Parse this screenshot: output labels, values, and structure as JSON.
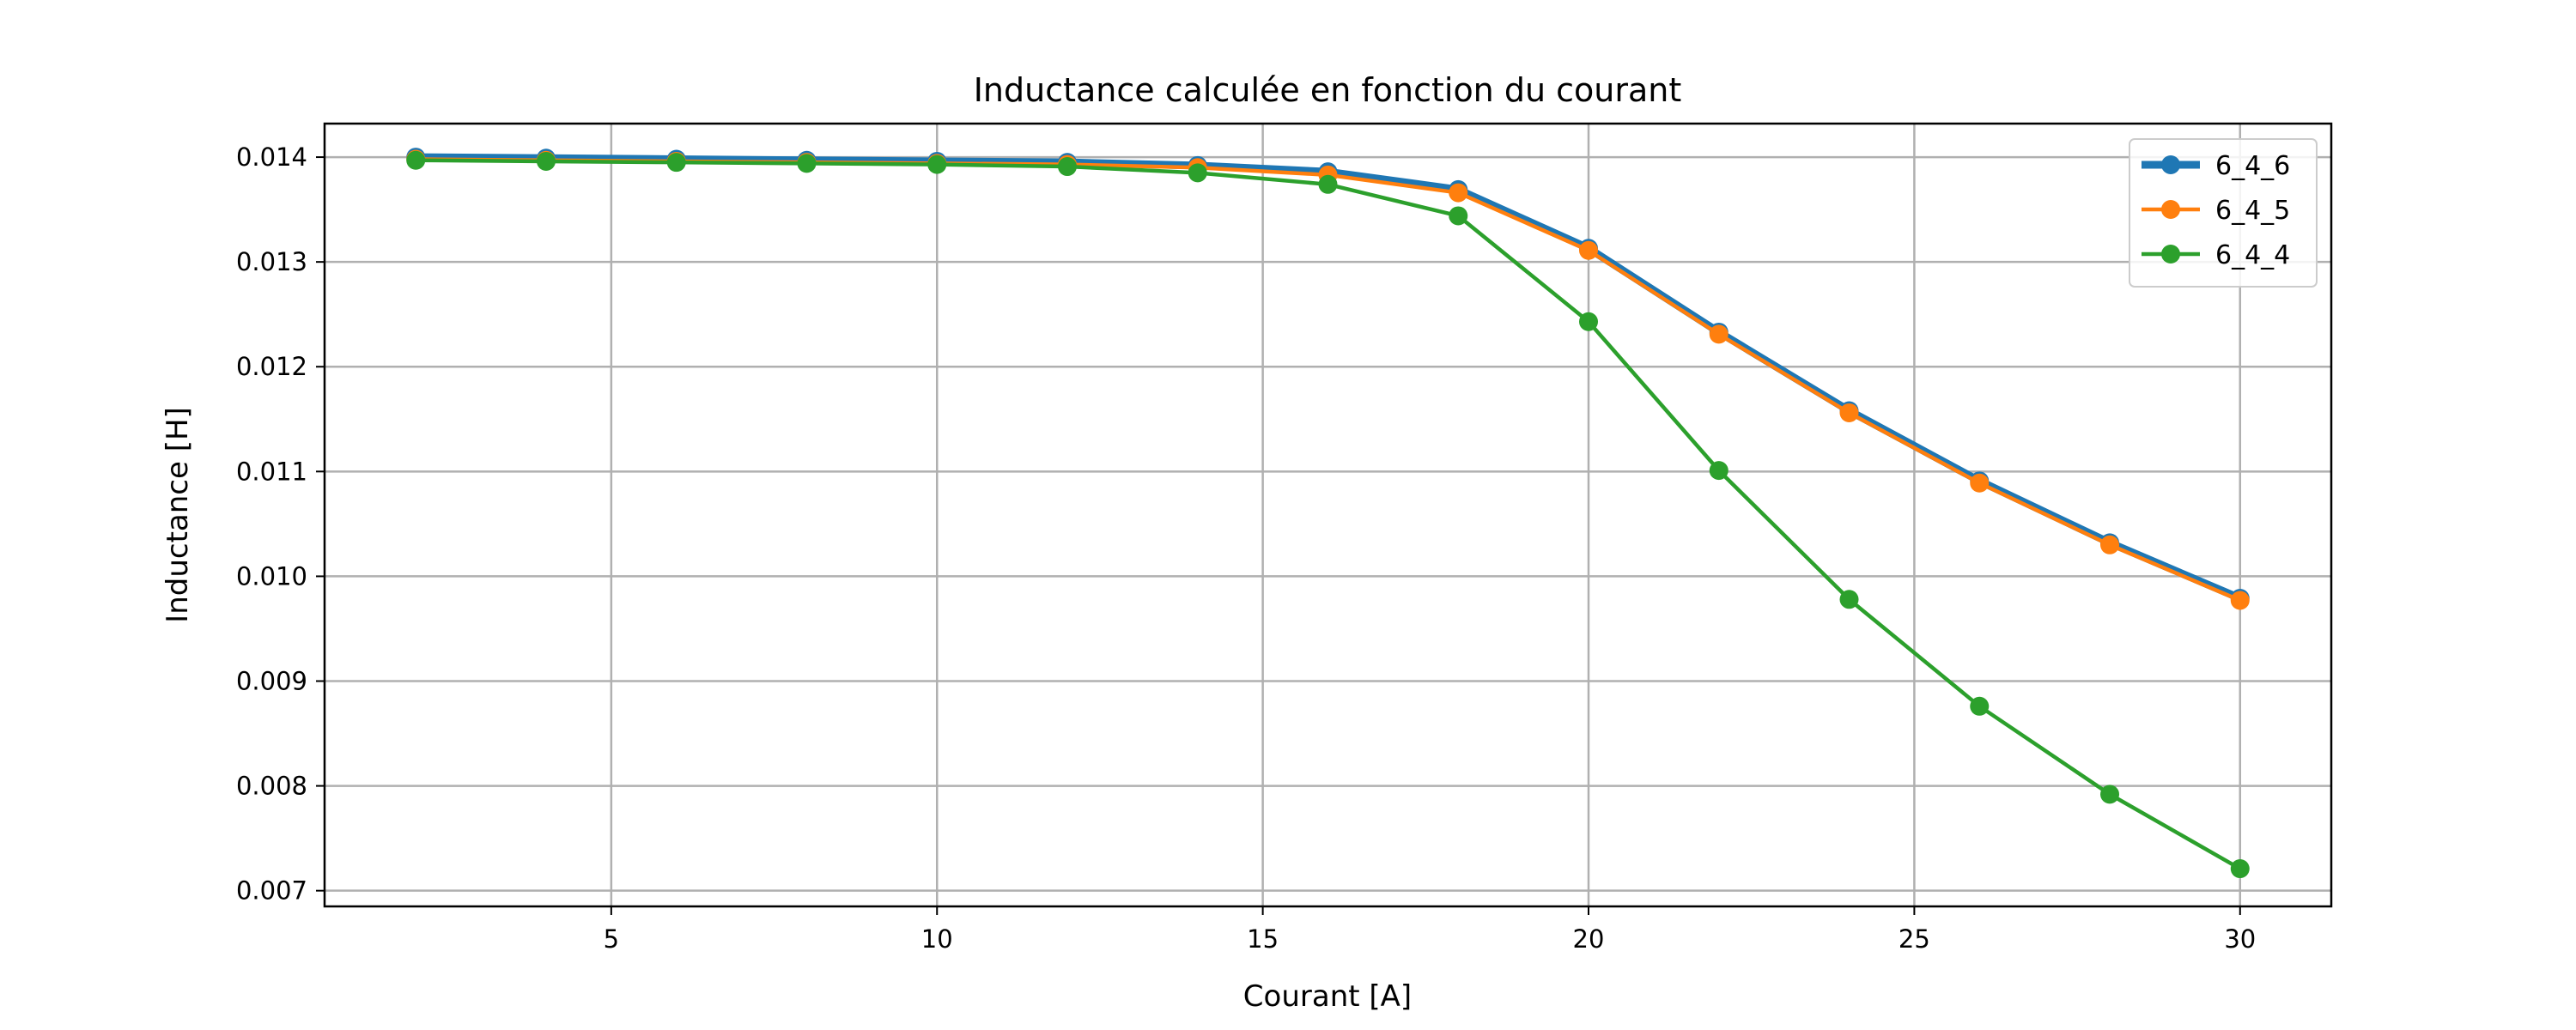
{
  "chart_data": {
    "type": "line",
    "title": "Inductance calculée en fonction du courant",
    "xlabel": "Courant [A]",
    "ylabel": "Inductance [H]",
    "xlim": [
      0.6,
      31.4
    ],
    "ylim": [
      0.00685,
      0.01432
    ],
    "xticks": [
      5,
      10,
      15,
      20,
      25,
      30
    ],
    "xtick_labels": [
      "5",
      "10",
      "15",
      "20",
      "25",
      "30"
    ],
    "yticks": [
      0.007,
      0.008,
      0.009,
      0.01,
      0.011,
      0.012,
      0.013,
      0.014
    ],
    "ytick_labels": [
      "0.007",
      "0.008",
      "0.009",
      "0.010",
      "0.011",
      "0.012",
      "0.013",
      "0.014"
    ],
    "grid": true,
    "legend_position": "top-right",
    "x": [
      2,
      4,
      6,
      8,
      10,
      12,
      14,
      16,
      18,
      20,
      22,
      24,
      26,
      28,
      30
    ],
    "series": [
      {
        "name": "6_4_6",
        "color": "#1f77b4",
        "line_width": "thick",
        "values": [
          0.014,
          0.01399,
          0.01398,
          0.01397,
          0.01396,
          0.01395,
          0.01392,
          0.01386,
          0.01369,
          0.01313,
          0.01233,
          0.01158,
          0.01091,
          0.01032,
          0.00979
        ]
      },
      {
        "name": "6_4_5",
        "color": "#ff7f0e",
        "line_width": "normal",
        "values": [
          0.01398,
          0.01397,
          0.01396,
          0.01395,
          0.01394,
          0.01393,
          0.0139,
          0.01383,
          0.01366,
          0.01311,
          0.01231,
          0.01156,
          0.01089,
          0.0103,
          0.00977
        ]
      },
      {
        "name": "6_4_4",
        "color": "#2ca02c",
        "line_width": "normal",
        "values": [
          0.01397,
          0.01396,
          0.01395,
          0.01394,
          0.01393,
          0.01391,
          0.01385,
          0.01374,
          0.01344,
          0.01243,
          0.01101,
          0.00978,
          0.00876,
          0.00792,
          0.00721
        ]
      }
    ]
  }
}
